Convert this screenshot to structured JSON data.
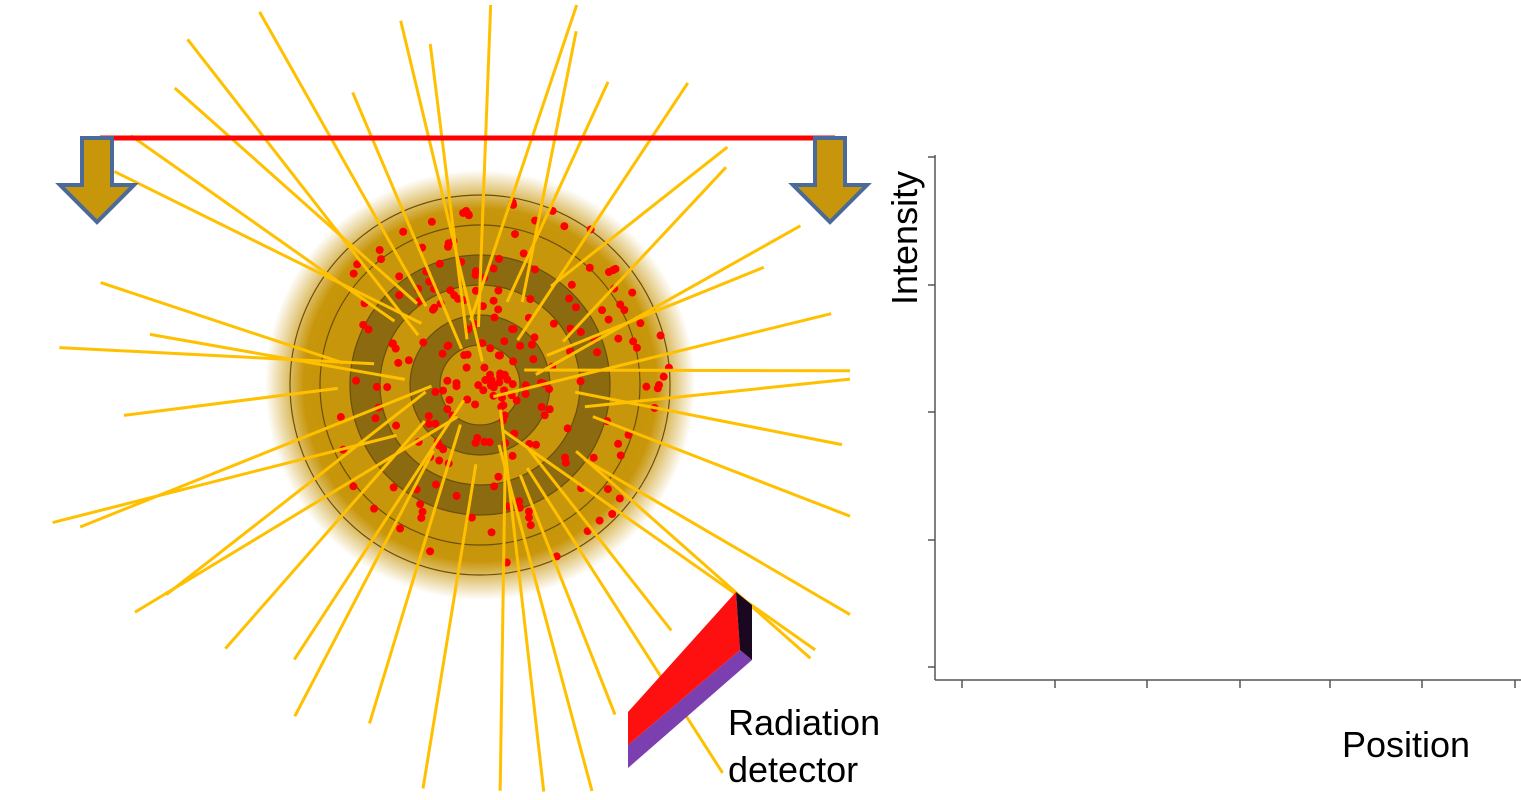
{
  "detector_label": [
    "Radiation",
    "detector"
  ],
  "y_axis_label": "Intensity",
  "x_axis_label": "Position"
}
